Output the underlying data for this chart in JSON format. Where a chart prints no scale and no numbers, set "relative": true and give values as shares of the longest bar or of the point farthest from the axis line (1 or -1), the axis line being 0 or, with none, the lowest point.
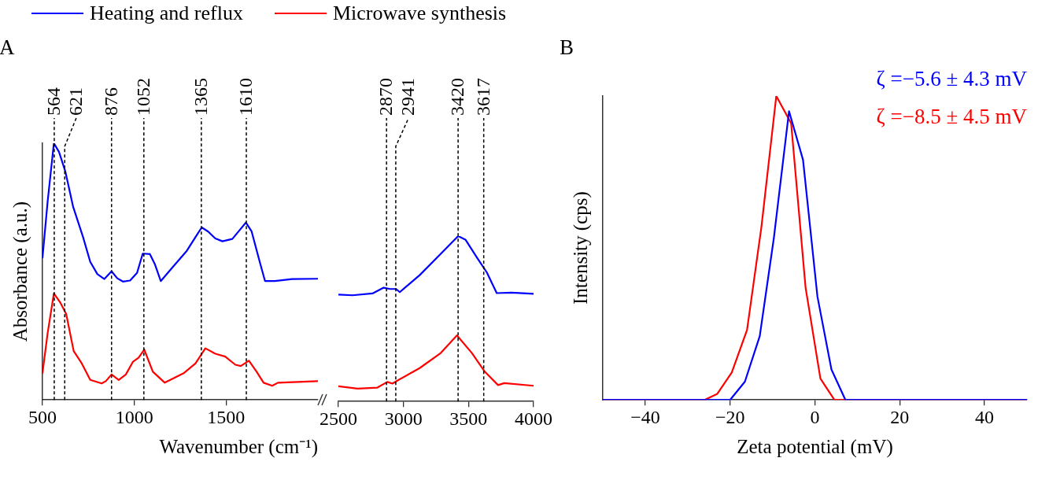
{
  "chart_data": [
    {
      "type": "line",
      "title": "A",
      "ylabel": "Absorbance (a.u.)",
      "xlabel": "Wavenumber (cm⁻¹)",
      "relative": true,
      "marker": "none",
      "legend": "top",
      "xlim": [
        500,
        2000
      ],
      "xticks": [
        500,
        1000,
        1500
      ],
      "x": [
        500,
        528,
        562,
        590,
        624,
        667,
        721,
        760,
        799,
        837,
        876,
        907,
        938,
        977,
        1015,
        1046,
        1085,
        1113,
        1144,
        1209,
        1286,
        1333,
        1367,
        1402,
        1441,
        1480,
        1534,
        1573,
        1608,
        1639,
        1681,
        1712,
        1766,
        1859,
        1998
      ],
      "series": [
        {
          "name": "Heating and reflux",
          "color": "#0000ff",
          "values": [
            0.554,
            0.773,
            1.0,
            0.966,
            0.891,
            0.752,
            0.634,
            0.538,
            0.49,
            0.471,
            0.501,
            0.474,
            0.461,
            0.465,
            0.495,
            0.57,
            0.568,
            0.527,
            0.463,
            0.517,
            0.581,
            0.634,
            0.672,
            0.656,
            0.629,
            0.618,
            0.627,
            0.661,
            0.691,
            0.656,
            0.543,
            0.463,
            0.463,
            0.471,
            0.472
          ]
        },
        {
          "name": "Microwave synthesis",
          "color": "#ff0000",
          "x": [
            500,
            528,
            562,
            598,
            629,
            670,
            714,
            760,
            822,
            845,
            876,
            915,
            954,
            992,
            1023,
            1054,
            1101,
            1166,
            1271,
            1333,
            1387,
            1441,
            1495,
            1550,
            1580,
            1624,
            1666,
            1704,
            1751,
            1782,
            1998
          ],
          "values": [
            0.105,
            0.26,
            0.415,
            0.378,
            0.335,
            0.19,
            0.142,
            0.078,
            0.064,
            0.073,
            0.099,
            0.078,
            0.099,
            0.148,
            0.164,
            0.196,
            0.11,
            0.067,
            0.105,
            0.142,
            0.201,
            0.18,
            0.169,
            0.137,
            0.132,
            0.153,
            0.11,
            0.067,
            0.055,
            0.067,
            0.073
          ]
        }
      ],
      "ref_lines": [
        {
          "axis": "x",
          "value": 564,
          "label": "564",
          "color": "#000000",
          "line_style": "dashed"
        },
        {
          "axis": "x",
          "value": 621,
          "label": "621",
          "color": "#000000",
          "line_style": "dashed"
        },
        {
          "axis": "x",
          "value": 876,
          "label": "876",
          "color": "#000000",
          "line_style": "dashed"
        },
        {
          "axis": "x",
          "value": 1052,
          "label": "1052",
          "color": "#000000",
          "line_style": "dashed"
        },
        {
          "axis": "x",
          "value": 1365,
          "label": "1365",
          "color": "#000000",
          "line_style": "dashed"
        },
        {
          "axis": "x",
          "value": 1610,
          "label": "1610",
          "color": "#000000",
          "line_style": "dashed"
        }
      ]
    },
    {
      "type": "line",
      "relative": true,
      "marker": "none",
      "xlim": [
        2500,
        4000
      ],
      "xticks": [
        2500,
        3000,
        3500,
        4000
      ],
      "series": [
        {
          "color": "#0000ff",
          "x": [
            2500,
            2609,
            2762,
            2848,
            2896,
            2943,
            2972,
            3125,
            3287,
            3421,
            3478,
            3564,
            3641,
            3717,
            3832,
            4000
          ],
          "values": [
            0.646,
            0.642,
            0.653,
            0.688,
            0.68,
            0.68,
            0.661,
            0.764,
            0.893,
            1.0,
            0.977,
            0.871,
            0.78,
            0.655,
            0.658,
            0.651
          ]
        },
        {
          "color": "#ff0000",
          "x": [
            2500,
            2647,
            2800,
            2876,
            2915,
            2953,
            3125,
            3287,
            3411,
            3526,
            3622,
            3727,
            3775,
            4000
          ],
          "values": [
            0.092,
            0.078,
            0.084,
            0.118,
            0.108,
            0.126,
            0.202,
            0.293,
            0.399,
            0.293,
            0.183,
            0.099,
            0.111,
            0.095
          ]
        }
      ],
      "ref_lines": [
        {
          "axis": "x",
          "value": 2870,
          "label": "2870",
          "color": "#000000",
          "line_style": "dashed"
        },
        {
          "axis": "x",
          "value": 2941,
          "label": "2941",
          "color": "#000000",
          "line_style": "dashed"
        },
        {
          "axis": "x",
          "value": 3420,
          "label": "3420",
          "color": "#000000",
          "line_style": "dashed"
        },
        {
          "axis": "x",
          "value": 3617,
          "label": "3617",
          "color": "#000000",
          "line_style": "dashed"
        }
      ]
    },
    {
      "type": "line",
      "title": "B",
      "ylabel": "Intensity (cps)",
      "xlabel": "Zeta potential (mV)",
      "relative": true,
      "marker": "none",
      "xlim": [
        -50,
        50
      ],
      "xticks": [
        {
          "value": -40,
          "label": "−40"
        },
        {
          "value": -20,
          "label": "−20"
        },
        0,
        20,
        40
      ],
      "series": [
        {
          "color": "#0000ff",
          "x": [
            -50,
            -20,
            -16.5,
            -13,
            -9.7,
            -6.1,
            -2.8,
            0.6,
            3.9,
            7.2,
            50
          ],
          "values": [
            0,
            0,
            0.06,
            0.21,
            0.53,
            0.95,
            0.79,
            0.34,
            0.1,
            0,
            0
          ]
        },
        {
          "color": "#ff0000",
          "x": [
            -50,
            -26,
            -23,
            -19.6,
            -16,
            -12.6,
            -9.1,
            -5.6,
            -2.2,
            1.3,
            4.6,
            50
          ],
          "values": [
            0,
            0,
            0.02,
            0.09,
            0.23,
            0.57,
            1.0,
            0.91,
            0.37,
            0.07,
            0,
            0
          ]
        }
      ],
      "annotations": [
        "ζ =−5.6 ± 4.3 mV",
        "ζ =−8.5 ± 4.5 mV"
      ]
    }
  ]
}
